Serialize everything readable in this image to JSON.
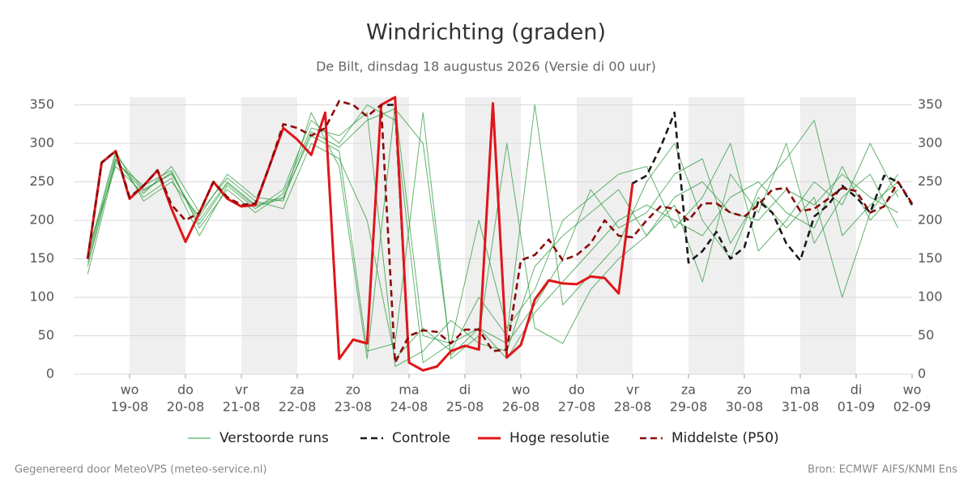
{
  "chart_data": {
    "type": "line",
    "title": "Windrichting (graden)",
    "subtitle": "De Bilt, dinsdag 18 augustus 2026 (Versie di 00 uur)",
    "footer_left": "Gegenereerd door MeteoVPS (meteo-service.nl)",
    "footer_right": "Bron: ECMWF AIFS/KNMI Ens",
    "xlim": [
      -1,
      14
    ],
    "xticks": [
      {
        "value": 0,
        "label": "wo"
      },
      {
        "value": 1,
        "label": "do"
      },
      {
        "value": 2,
        "label": "vr"
      },
      {
        "value": 3,
        "label": "za"
      },
      {
        "value": 4,
        "label": "zo"
      },
      {
        "value": 5,
        "label": "ma"
      },
      {
        "value": 6,
        "label": "di"
      },
      {
        "value": 7,
        "label": "wo"
      },
      {
        "value": 8,
        "label": "do"
      },
      {
        "value": 9,
        "label": "vr"
      },
      {
        "value": 10,
        "label": "za"
      },
      {
        "value": 11,
        "label": "zo"
      },
      {
        "value": 12,
        "label": "ma"
      },
      {
        "value": 13,
        "label": "di"
      },
      {
        "value": 14,
        "label": "wo"
      }
    ],
    "xtick_dates": [
      "19-08",
      "20-08",
      "21-08",
      "22-08",
      "23-08",
      "24-08",
      "25-08",
      "26-08",
      "27-08",
      "28-08",
      "29-08",
      "30-08",
      "31-08",
      "01-09",
      "02-09"
    ],
    "ylim": [
      0,
      360
    ],
    "yticks": [
      0,
      50,
      100,
      150,
      200,
      250,
      300,
      350
    ],
    "grid": true,
    "series": [
      {
        "name": "Verstoorde runs",
        "color": "#2e9a3e",
        "style": "thin",
        "x": [
          -0.75,
          -0.25,
          0.25,
          0.75,
          1.25,
          1.75,
          2.25,
          2.75,
          3.25,
          3.75,
          4.25,
          4.75,
          5.25,
          5.75,
          6.25,
          6.75,
          7.25,
          7.75,
          8.25,
          8.75,
          9.25,
          9.75,
          10.25,
          10.75,
          11.25,
          11.75,
          12.25,
          12.75,
          13.25,
          13.75
        ],
        "members": [
          [
            150,
            285,
            240,
            260,
            200,
            250,
            220,
            230,
            310,
            290,
            30,
            40,
            340,
            20,
            50,
            300,
            60,
            40,
            110,
            150,
            180,
            230,
            250,
            210,
            200,
            240,
            220,
            260,
            230,
            210
          ],
          [
            140,
            280,
            230,
            255,
            180,
            245,
            215,
            240,
            330,
            300,
            350,
            330,
            15,
            40,
            60,
            20,
            80,
            120,
            160,
            200,
            220,
            200,
            180,
            230,
            250,
            210,
            190,
            270,
            200,
            240
          ],
          [
            160,
            270,
            235,
            270,
            210,
            255,
            225,
            215,
            300,
            280,
            200,
            20,
            60,
            30,
            100,
            50,
            350,
            90,
            130,
            170,
            250,
            300,
            200,
            150,
            240,
            280,
            330,
            180,
            220,
            250
          ],
          [
            130,
            275,
            245,
            265,
            190,
            240,
            210,
            235,
            320,
            310,
            340,
            10,
            30,
            70,
            40,
            30,
            140,
            180,
            210,
            240,
            180,
            220,
            120,
            260,
            210,
            300,
            170,
            230,
            260,
            190
          ],
          [
            155,
            290,
            225,
            250,
            205,
            260,
            230,
            225,
            340,
            270,
            20,
            350,
            50,
            40,
            200,
            60,
            110,
            200,
            230,
            260,
            270,
            190,
            230,
            300,
            160,
            200,
            250,
            220,
            300,
            230
          ],
          [
            145,
            278,
            238,
            262,
            195,
            248,
            218,
            228,
            315,
            295,
            330,
            345,
            300,
            25,
            60,
            40,
            90,
            150,
            240,
            190,
            210,
            260,
            280,
            170,
            230,
            190,
            230,
            100,
            210,
            260
          ]
        ]
      },
      {
        "name": "Controle",
        "color": "#1a1a1a",
        "style": "dash",
        "x": [
          -0.75,
          -0.5,
          -0.25,
          0,
          0.25,
          0.5,
          0.75,
          1,
          1.25,
          1.5,
          1.75,
          2,
          2.25,
          2.5,
          2.75,
          3,
          3.25,
          3.5,
          3.75,
          4,
          4.25,
          4.5,
          4.75,
          5,
          5.25,
          5.5,
          5.75,
          6,
          6.25,
          6.5,
          6.75,
          7,
          7.25,
          7.5,
          7.75,
          8,
          8.25,
          8.5,
          8.75,
          9,
          9.25,
          9.5,
          9.75,
          10,
          10.25,
          10.5,
          10.75,
          11,
          11.25,
          11.5,
          11.75,
          12,
          12.25,
          12.5,
          12.75,
          13,
          13.25,
          13.5,
          13.75,
          14
        ],
        "values": [
          150,
          275,
          290,
          228,
          245,
          265,
          215,
          172,
          210,
          250,
          228,
          218,
          220,
          270,
          320,
          305,
          285,
          340,
          20,
          45,
          40,
          350,
          350,
          15,
          5,
          10,
          30,
          37,
          32,
          352,
          22,
          38,
          97,
          122,
          118,
          117,
          127,
          125,
          105,
          248,
          258,
          295,
          340,
          145,
          160,
          185,
          150,
          165,
          225,
          210,
          170,
          148,
          205,
          220,
          245,
          230,
          210,
          258,
          250,
          220
        ]
      },
      {
        "name": "Hoge resolutie",
        "color": "#e0161b",
        "style": "thick",
        "x": [
          -0.75,
          -0.5,
          -0.25,
          0,
          0.25,
          0.5,
          0.75,
          1,
          1.25,
          1.5,
          1.75,
          2,
          2.25,
          2.5,
          2.75,
          3,
          3.25,
          3.5,
          3.75,
          4,
          4.25,
          4.5,
          4.75,
          5,
          5.25,
          5.5,
          5.75,
          6,
          6.25,
          6.5,
          6.75,
          7,
          7.25,
          7.5,
          7.75,
          8,
          8.25,
          8.5,
          8.75,
          9
        ],
        "values": [
          150,
          275,
          290,
          228,
          245,
          265,
          215,
          172,
          210,
          250,
          228,
          218,
          220,
          270,
          320,
          305,
          285,
          340,
          20,
          45,
          40,
          350,
          360,
          15,
          5,
          10,
          30,
          37,
          32,
          352,
          22,
          38,
          97,
          122,
          118,
          117,
          127,
          125,
          105,
          248
        ]
      },
      {
        "name": "Middelste (P50)",
        "color": "#8b0a0a",
        "style": "dash",
        "x": [
          -0.75,
          -0.5,
          -0.25,
          0,
          0.25,
          0.5,
          0.75,
          1,
          1.25,
          1.5,
          1.75,
          2,
          2.25,
          2.5,
          2.75,
          3,
          3.25,
          3.5,
          3.75,
          4,
          4.25,
          4.5,
          4.75,
          5,
          5.25,
          5.5,
          5.75,
          6,
          6.25,
          6.5,
          6.75,
          7,
          7.25,
          7.5,
          7.75,
          8,
          8.25,
          8.5,
          8.75,
          9,
          9.25,
          9.5,
          9.75,
          10,
          10.25,
          10.5,
          10.75,
          11,
          11.25,
          11.5,
          11.75,
          12,
          12.25,
          12.5,
          12.75,
          13,
          13.25,
          13.5,
          13.75,
          14
        ],
        "values": [
          150,
          275,
          290,
          230,
          245,
          265,
          220,
          200,
          210,
          250,
          230,
          220,
          222,
          270,
          325,
          320,
          310,
          320,
          355,
          350,
          335,
          350,
          15,
          50,
          57,
          55,
          40,
          58,
          58,
          30,
          32,
          148,
          155,
          175,
          148,
          155,
          170,
          200,
          180,
          178,
          200,
          218,
          215,
          200,
          222,
          222,
          210,
          205,
          220,
          240,
          242,
          212,
          215,
          228,
          242,
          238,
          210,
          218,
          250,
          222
        ]
      }
    ]
  }
}
